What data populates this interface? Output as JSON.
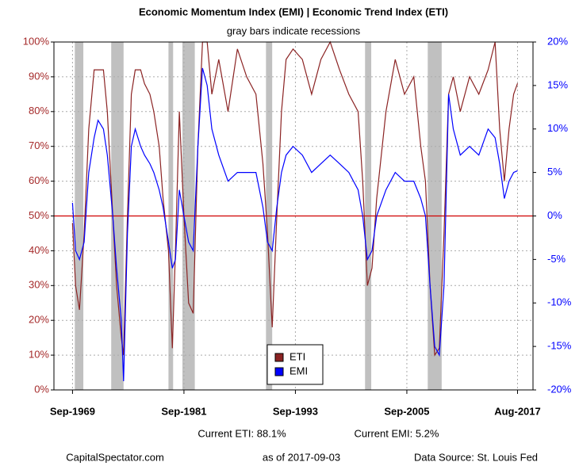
{
  "chart_data": {
    "type": "line",
    "title": "Economic Momentum Index (EMI) | Economic Trend Index (ETI)",
    "subtitle": "gray bars indicate recessions",
    "x": [
      "1969-09",
      "1970-01",
      "1970-06",
      "1970-12",
      "1971-06",
      "1972-01",
      "1972-06",
      "1973-01",
      "1973-06",
      "1974-01",
      "1974-06",
      "1974-12",
      "1975-03",
      "1975-08",
      "1976-01",
      "1976-06",
      "1977-01",
      "1977-06",
      "1978-01",
      "1978-06",
      "1979-01",
      "1979-06",
      "1980-01",
      "1980-06",
      "1980-10",
      "1981-03",
      "1981-09",
      "1982-03",
      "1982-09",
      "1983-03",
      "1983-09",
      "1984-03",
      "1984-09",
      "1985-06",
      "1986-06",
      "1987-06",
      "1988-06",
      "1989-06",
      "1990-03",
      "1990-09",
      "1991-03",
      "1991-09",
      "1992-03",
      "1992-09",
      "1993-06",
      "1994-06",
      "1995-06",
      "1996-06",
      "1997-06",
      "1998-06",
      "1999-06",
      "2000-06",
      "2000-12",
      "2001-06",
      "2001-12",
      "2002-06",
      "2003-06",
      "2004-06",
      "2005-06",
      "2006-06",
      "2007-03",
      "2007-09",
      "2008-03",
      "2008-09",
      "2009-03",
      "2009-09",
      "2010-03",
      "2010-09",
      "2011-06",
      "2012-06",
      "2013-06",
      "2014-06",
      "2015-03",
      "2015-09",
      "2016-03",
      "2016-09",
      "2017-03",
      "2017-08"
    ],
    "series": [
      {
        "name": "ETI",
        "color": "#8b2323",
        "axis": "y",
        "values": [
          48,
          30,
          23,
          45,
          75,
          92,
          92,
          92,
          80,
          50,
          30,
          15,
          10,
          50,
          85,
          92,
          92,
          88,
          85,
          80,
          70,
          55,
          40,
          12,
          40,
          80,
          50,
          25,
          22,
          70,
          100,
          100,
          85,
          95,
          80,
          98,
          90,
          85,
          65,
          45,
          18,
          50,
          80,
          95,
          98,
          95,
          85,
          95,
          100,
          92,
          85,
          80,
          60,
          30,
          35,
          55,
          80,
          95,
          85,
          90,
          70,
          60,
          30,
          10,
          12,
          45,
          85,
          90,
          80,
          90,
          85,
          92,
          100,
          75,
          60,
          75,
          85,
          88.1
        ]
      },
      {
        "name": "EMI",
        "color": "#0000ff",
        "axis": "y2",
        "values": [
          1.5,
          -4,
          -5,
          -3,
          5,
          9,
          11,
          10,
          7,
          0,
          -6,
          -12,
          -19,
          -2,
          8,
          10,
          8,
          7,
          6,
          5,
          3,
          1,
          -3,
          -6,
          -5,
          3,
          0,
          -3,
          -4,
          8,
          17,
          15,
          10,
          7,
          4,
          5,
          5,
          5,
          1,
          -3,
          -4,
          1,
          5,
          7,
          8,
          7,
          5,
          6,
          7,
          6,
          5,
          3,
          0,
          -5,
          -4,
          0,
          3,
          5,
          4,
          4,
          2,
          0,
          -8,
          -15,
          -16,
          -8,
          14,
          10,
          7,
          8,
          7,
          10,
          9,
          6,
          2,
          4,
          5,
          5.2
        ]
      }
    ],
    "recessions": [
      [
        "1969-12",
        "1970-11"
      ],
      [
        "1973-11",
        "1975-03"
      ],
      [
        "1980-01",
        "1980-07"
      ],
      [
        "1981-07",
        "1982-11"
      ],
      [
        "1990-07",
        "1991-03"
      ],
      [
        "2001-03",
        "2001-11"
      ],
      [
        "2007-12",
        "2009-06"
      ]
    ],
    "xlim": [
      "1967-09",
      "2019-04"
    ],
    "xticks": [
      {
        "value": "1969-09",
        "label": "Sep-1969"
      },
      {
        "value": "1981-09",
        "label": "Sep-1981"
      },
      {
        "value": "1993-09",
        "label": "Sep-1993"
      },
      {
        "value": "2005-09",
        "label": "Sep-2005"
      },
      {
        "value": "2017-08",
        "label": "Aug-2017"
      }
    ],
    "ylim": [
      0,
      100
    ],
    "yticks": [
      {
        "value": 0,
        "label": "0%"
      },
      {
        "value": 10,
        "label": "10%"
      },
      {
        "value": 20,
        "label": "20%"
      },
      {
        "value": 30,
        "label": "30%"
      },
      {
        "value": 40,
        "label": "40%"
      },
      {
        "value": 50,
        "label": "50%"
      },
      {
        "value": 60,
        "label": "60%"
      },
      {
        "value": 70,
        "label": "70%"
      },
      {
        "value": 80,
        "label": "80%"
      },
      {
        "value": 90,
        "label": "90%"
      },
      {
        "value": 100,
        "label": "100%"
      }
    ],
    "y2lim": [
      -20,
      20
    ],
    "y2ticks": [
      {
        "value": -20,
        "label": "-20%"
      },
      {
        "value": -15,
        "label": "-15%"
      },
      {
        "value": -10,
        "label": "-10%"
      },
      {
        "value": -5,
        "label": "-5%"
      },
      {
        "value": 0,
        "label": "0%"
      },
      {
        "value": 5,
        "label": "5%"
      },
      {
        "value": 10,
        "label": "10%"
      },
      {
        "value": 15,
        "label": "15%"
      },
      {
        "value": 20,
        "label": "20%"
      }
    ],
    "reference_line": 50,
    "grid": true,
    "legend": "bottom-center",
    "annotations": [
      "Current ETI: 88.1%",
      "Current EMI: 5.2%",
      "CapitalSpectator.com",
      "as of 2017-09-03",
      "Data Source: St. Louis Fed"
    ]
  }
}
